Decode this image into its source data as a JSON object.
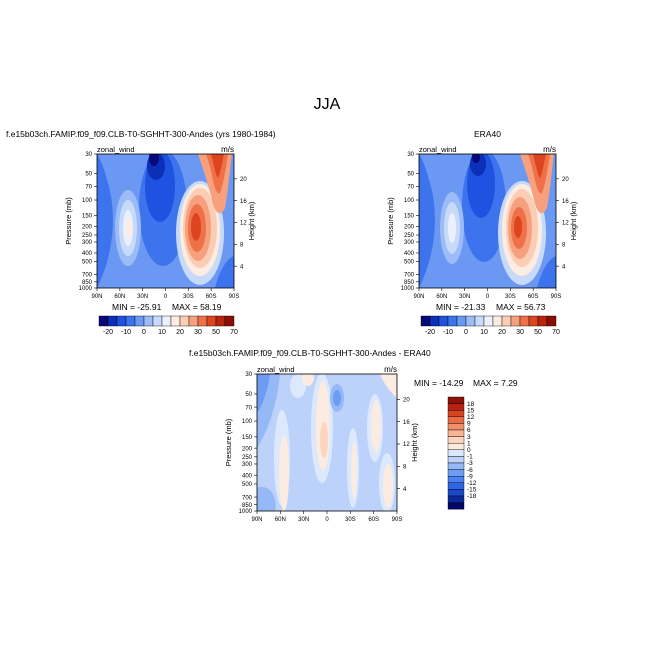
{
  "page": {
    "title": "JJA"
  },
  "colors": {
    "zonal_palette": [
      "#08087a",
      "#0c2fb8",
      "#1f52e0",
      "#3d74ee",
      "#6a98f3",
      "#9bbcf7",
      "#c7dafa",
      "#eaf1fd",
      "#fdece2",
      "#fbcdb4",
      "#f7a07d",
      "#ef7148",
      "#dc4520",
      "#b8240e",
      "#8a0f05"
    ],
    "diff_palette": [
      "#06066b",
      "#0c2a9e",
      "#1b48c9",
      "#2f65e4",
      "#4b82ef",
      "#6e9cf4",
      "#95b8f7",
      "#bcd2fa",
      "#dce8fc",
      "#fcebe0",
      "#fbd5bf",
      "#f8b596",
      "#f3906c",
      "#ea6a45",
      "#d8441f",
      "#b52410",
      "#8e1007"
    ]
  },
  "chart_data": [
    {
      "type": "heatmap",
      "panel": "top-left",
      "title": "f.e15b03ch.FAMIP.f09_f09.CLB-T0-SGHHT-300-Andes (yrs 1980-1984)",
      "left_label": "zonal_wind",
      "right_label": "m/s",
      "ylabel": "Pressure (mb)",
      "ylabel_right": "Height (km)",
      "x_ticks": [
        "90N",
        "60N",
        "30N",
        "0",
        "30S",
        "60S",
        "90S"
      ],
      "y_ticks": [
        "30",
        "50",
        "70",
        "100",
        "150",
        "200",
        "250",
        "300",
        "400",
        "500",
        "700",
        "850",
        "1000"
      ],
      "y2_ticks": [
        "20",
        "16",
        "12",
        "8",
        "4"
      ],
      "stats": {
        "min_label": "MIN = -25.91",
        "max_label": "MAX =  58.19"
      },
      "colorbar": {
        "orientation": "horizontal",
        "labels": [
          "-20",
          "-10",
          "0",
          "10",
          "20",
          "30",
          "50",
          "70"
        ]
      }
    },
    {
      "type": "heatmap",
      "panel": "top-right",
      "title": "ERA40",
      "left_label": "zonal_wind",
      "right_label": "m/s",
      "ylabel": "Pressure (mb)",
      "ylabel_right": "Height (km)",
      "x_ticks": [
        "90N",
        "60N",
        "30N",
        "0",
        "30S",
        "60S",
        "90S"
      ],
      "y_ticks": [
        "30",
        "50",
        "70",
        "100",
        "150",
        "200",
        "250",
        "300",
        "400",
        "500",
        "700",
        "850",
        "1000"
      ],
      "y2_ticks": [
        "20",
        "16",
        "12",
        "8",
        "4"
      ],
      "stats": {
        "min_label": "MIN = -21.33",
        "max_label": "MAX =  56.73"
      },
      "colorbar": {
        "orientation": "horizontal",
        "labels": [
          "-20",
          "-10",
          "0",
          "10",
          "20",
          "30",
          "50",
          "70"
        ]
      }
    },
    {
      "type": "heatmap",
      "panel": "bottom-center",
      "title": "f.e15b03ch.FAMIP.f09_f09.CLB-T0-SGHHT-300-Andes - ERA40",
      "left_label": "zonal_wind",
      "right_label": "m/s",
      "ylabel": "Pressure (mb)",
      "ylabel_right": "Height (km)",
      "x_ticks": [
        "90N",
        "60N",
        "30N",
        "0",
        "30S",
        "60S",
        "90S"
      ],
      "y_ticks": [
        "30",
        "50",
        "70",
        "100",
        "150",
        "200",
        "250",
        "300",
        "400",
        "500",
        "700",
        "850",
        "1000"
      ],
      "y2_ticks": [
        "20",
        "16",
        "12",
        "8",
        "4"
      ],
      "stats": {
        "min_label": "MIN = -14.29",
        "max_label": "MAX =   7.29"
      },
      "colorbar": {
        "orientation": "vertical",
        "labels": [
          "18",
          "15",
          "12",
          "9",
          "6",
          "3",
          "1",
          "0",
          "-1",
          "-3",
          "-6",
          "-9",
          "-12",
          "-15",
          "-18"
        ]
      }
    }
  ]
}
